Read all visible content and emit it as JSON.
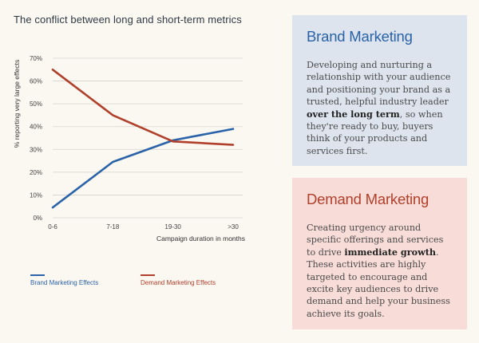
{
  "title": "The conflict between long and short-term metrics",
  "chart_data": {
    "type": "line",
    "categories": [
      "0-6",
      "7-18",
      "19-30",
      ">30"
    ],
    "ylabel": "% reporting very large effects",
    "xlabel": "Campaign duration in months",
    "ylim": [
      0,
      70
    ],
    "yticks": [
      "0%",
      "10%",
      "20%",
      "30%",
      "40%",
      "50%",
      "60%",
      "70%"
    ],
    "grid": "horizontal",
    "legend_position": "bottom",
    "series": [
      {
        "name": "Brand Marketing Effects",
        "color": "#2a63a8",
        "values": [
          4.5,
          24.5,
          34,
          39
        ]
      },
      {
        "name": "Demand Marketing Effects",
        "color": "#b0402b",
        "values": [
          65,
          45,
          33.5,
          32
        ]
      }
    ]
  },
  "brand_card": {
    "heading": "Brand Marketing",
    "text_before": "Developing and nurturing a relationship with your audience and positioning your brand as a trusted, helpful industry leader ",
    "text_bold": "over the long term",
    "text_after": ", so when they're ready to buy, buyers think of your products and services first."
  },
  "demand_card": {
    "heading": "Demand Marketing",
    "text_before": "Creating urgency around specific offerings and services to drive ",
    "text_bold": "immediate growth",
    "text_after": ". These activities are highly targeted to encourage and excite key audiences to drive demand and help your business achieve its goals."
  }
}
